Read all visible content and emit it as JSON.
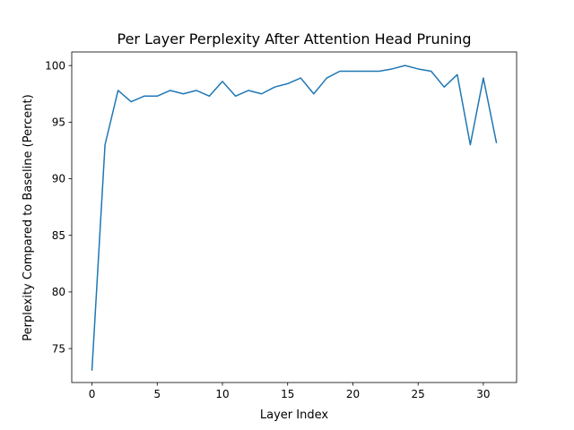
{
  "chart_data": {
    "type": "line",
    "title": "Per Layer Perplexity After Attention Head Pruning",
    "xlabel": "Layer Index",
    "ylabel": "Perplexity Compared to Baseline (Percent)",
    "xlim": [
      -1.55,
      32.55
    ],
    "ylim": [
      72.0,
      101.2
    ],
    "xticks": [
      0,
      5,
      10,
      15,
      20,
      25,
      30
    ],
    "yticks": [
      75,
      80,
      85,
      90,
      95,
      100
    ],
    "grid": false,
    "series": [
      {
        "color": "#1f77b4",
        "x": [
          0,
          1,
          2,
          3,
          4,
          5,
          6,
          7,
          8,
          9,
          10,
          11,
          12,
          13,
          14,
          15,
          16,
          17,
          18,
          19,
          20,
          21,
          22,
          23,
          24,
          25,
          26,
          27,
          28,
          29,
          30,
          31
        ],
        "y": [
          73.1,
          93.0,
          97.8,
          96.8,
          97.3,
          97.3,
          97.8,
          97.5,
          97.8,
          97.3,
          98.6,
          97.3,
          97.8,
          97.5,
          98.1,
          98.4,
          98.9,
          97.5,
          98.9,
          99.5,
          99.5,
          99.5,
          99.5,
          99.7,
          100.0,
          99.7,
          99.5,
          98.1,
          99.2,
          93.0,
          98.9,
          93.2
        ]
      }
    ]
  }
}
